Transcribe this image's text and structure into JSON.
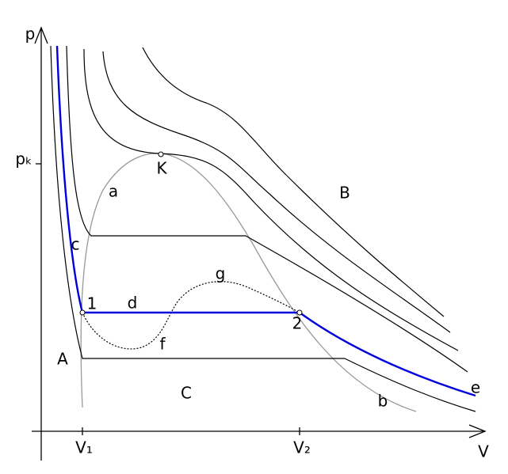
{
  "axes": {
    "y_label": "p",
    "y_mark": "pₖ",
    "x_label": "V",
    "x_marks": [
      "V₁",
      "V₂"
    ]
  },
  "points": {
    "critical": "K",
    "left": "1",
    "right": "2"
  },
  "curve_labels": {
    "a": "a",
    "b": "b",
    "c": "c",
    "d": "d",
    "e": "e",
    "f": "f",
    "g": "g"
  },
  "regions": {
    "A": "A",
    "B": "B",
    "C": "C"
  }
}
